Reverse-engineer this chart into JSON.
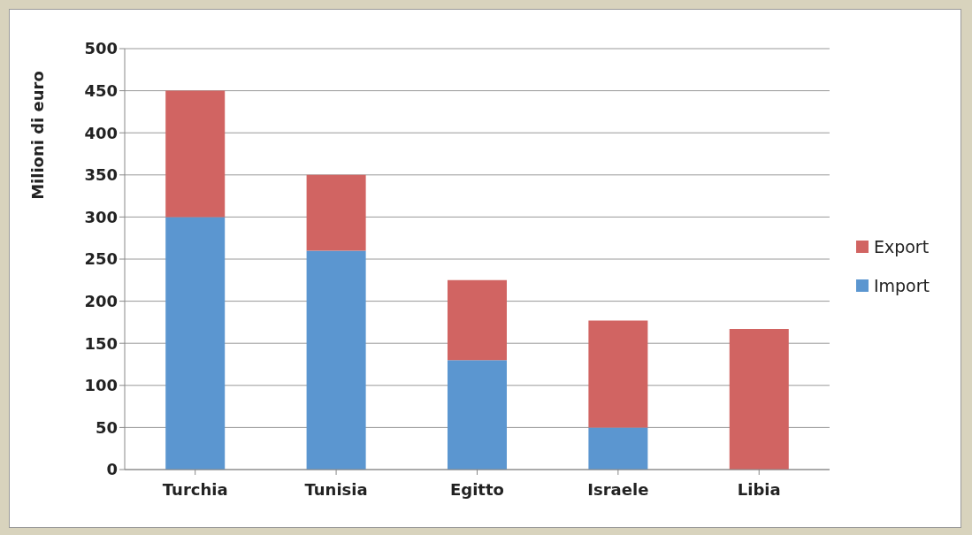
{
  "chart_data": {
    "type": "bar",
    "ylabel": "Milioni di euro",
    "categories": [
      "Turchia",
      "Tunisia",
      "Egitto",
      "Israele",
      "Libia"
    ],
    "stacked": true,
    "series": [
      {
        "name": "Import",
        "color": "#5b96d0",
        "values": [
          300,
          260,
          130,
          50,
          0
        ]
      },
      {
        "name": "Export",
        "color": "#d16462",
        "values": [
          150,
          90,
          95,
          127,
          167
        ]
      }
    ],
    "ylim": [
      0,
      500
    ],
    "yticks": [
      0,
      50,
      100,
      150,
      200,
      250,
      300,
      350,
      400,
      450,
      500
    ],
    "grid": "y",
    "legend": "right"
  }
}
